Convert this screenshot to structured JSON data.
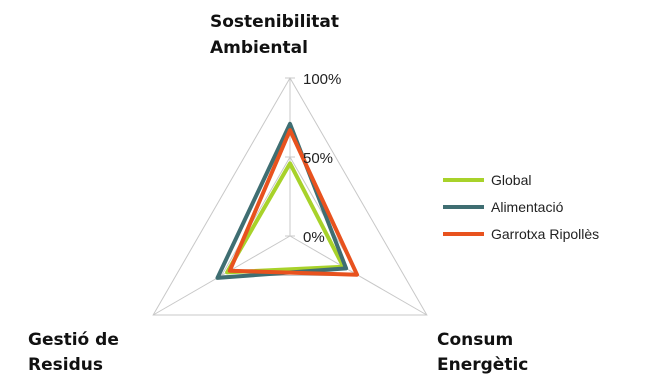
{
  "chart_data": {
    "type": "radar",
    "axes": [
      {
        "label_lines": [
          "Sostenibilitat",
          "Ambiental"
        ]
      },
      {
        "label_lines": [
          "Consum",
          "Energètic"
        ]
      },
      {
        "label_lines": [
          "Gestió de",
          "Residus"
        ]
      }
    ],
    "rlim": [
      0,
      100
    ],
    "ticks": [
      {
        "value": 0,
        "label": "0%"
      },
      {
        "value": 50,
        "label": "50%"
      },
      {
        "value": 100,
        "label": "100%"
      }
    ],
    "grid": true,
    "legend_position": "right",
    "series": [
      {
        "name": "Global",
        "color": "#a8d22a",
        "values": [
          46,
          39,
          46
        ]
      },
      {
        "name": "Alimentació",
        "color": "#3f6e72",
        "values": [
          71,
          41,
          53
        ]
      },
      {
        "name": "Garrotxa Ripollès",
        "color": "#e8521e",
        "values": [
          67,
          49,
          44
        ]
      }
    ]
  }
}
